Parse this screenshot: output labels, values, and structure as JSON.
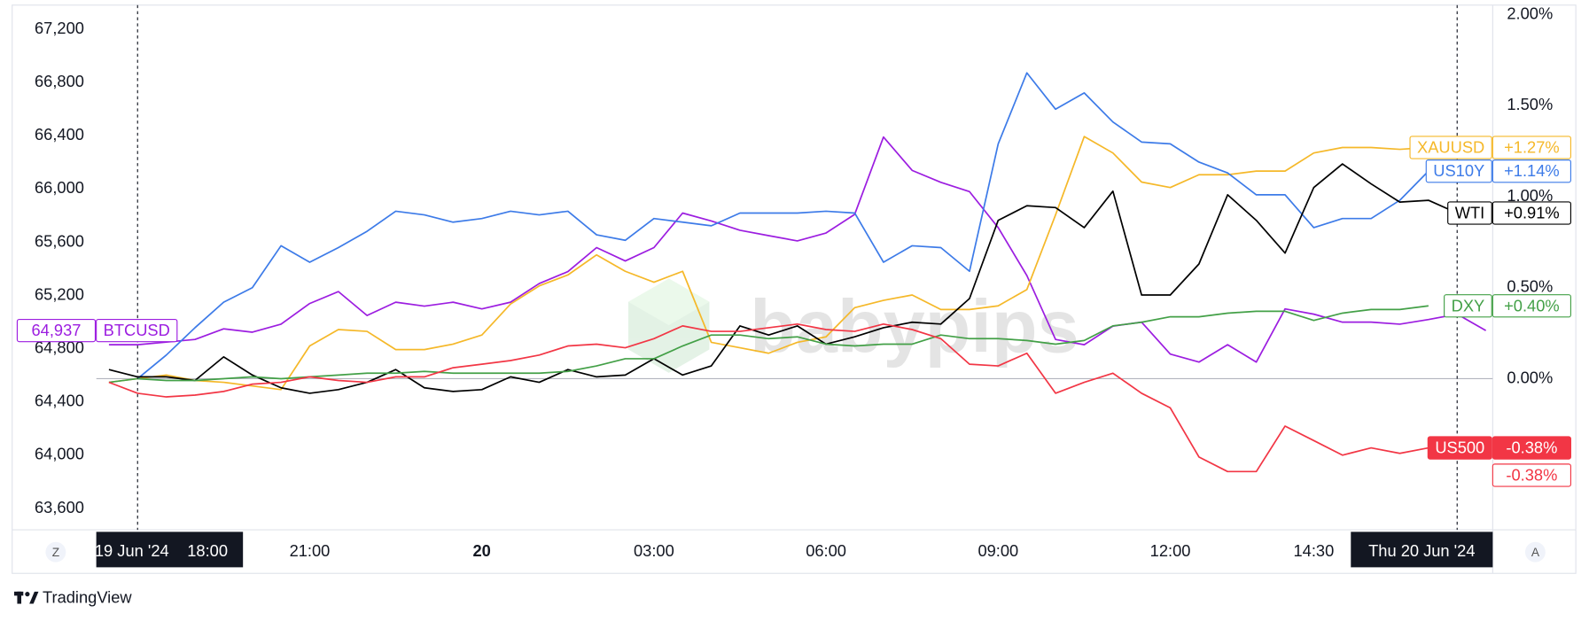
{
  "chart_data": {
    "type": "line",
    "x": [
      17.5,
      18,
      18.5,
      19,
      19.5,
      20,
      20.5,
      21,
      21.5,
      22,
      22.5,
      23,
      23.5,
      24,
      24.5,
      25,
      25.5,
      26,
      26.5,
      27,
      27.5,
      28,
      28.5,
      29,
      29.5,
      30,
      30.5,
      31,
      31.5,
      32,
      32.5,
      33,
      33.5,
      34,
      34.5,
      35,
      35.5,
      36,
      36.5,
      37,
      37.5,
      38,
      38.5,
      39,
      39.5,
      40,
      40.5,
      41,
      41.5
    ],
    "xlim": [
      17.28,
      41.62
    ],
    "xticks": [
      {
        "value": 21,
        "label": "21:00"
      },
      {
        "value": 24,
        "label": "20",
        "bold": true
      },
      {
        "value": 27,
        "label": "03:00"
      },
      {
        "value": 30,
        "label": "06:00"
      },
      {
        "value": 33,
        "label": "09:00"
      },
      {
        "value": 36,
        "label": "12:00"
      },
      {
        "value": 38.5,
        "label": "14:30"
      }
    ],
    "ylim": [
      63440,
      67420
    ],
    "yticks": [
      {
        "value": 63600,
        "label": "63,600"
      },
      {
        "value": 64000,
        "label": "64,000"
      },
      {
        "value": 64400,
        "label": "64,400"
      },
      {
        "value": 64800,
        "label": "64,800"
      },
      {
        "value": 65200,
        "label": "65,200"
      },
      {
        "value": 65600,
        "label": "65,600"
      },
      {
        "value": 66000,
        "label": "66,000"
      },
      {
        "value": 66400,
        "label": "66,400"
      },
      {
        "value": 66800,
        "label": "66,800"
      },
      {
        "value": 67200,
        "label": "67,200"
      }
    ],
    "y2lim": [
      -0.83,
      2.08
    ],
    "y2ticks": [
      {
        "value": 0,
        "label": "0.00%"
      },
      {
        "value": 0.5,
        "label": "0.50%"
      },
      {
        "value": 1,
        "label": "1.00%"
      },
      {
        "value": 1.5,
        "label": "1.50%"
      },
      {
        "value": 2,
        "label": "2.00%"
      }
    ],
    "zero_line": true,
    "markers": [
      {
        "x": 18,
        "label": "19 Jun '24",
        "time": "18:00"
      },
      {
        "x": 41,
        "label": "Thu 20 Jun '24"
      }
    ],
    "series": [
      {
        "name": "BTCUSD",
        "color": "#9c1de0",
        "axis": "y",
        "values": [
          64830,
          64830,
          64850,
          64870,
          64950,
          64925,
          64985,
          65140,
          65230,
          65050,
          65150,
          65120,
          65150,
          65100,
          65150,
          65290,
          65380,
          65560,
          65460,
          65560,
          65820,
          65760,
          65690,
          65650,
          65610,
          65670,
          65810,
          66390,
          66140,
          66050,
          65980,
          65710,
          65350,
          64870,
          64830,
          64970,
          65000,
          64760,
          64700,
          64830,
          64700,
          65100,
          65060,
          65000,
          65000,
          64985,
          65020,
          65060,
          64937
        ],
        "value_labels": {
          "48": "64,937"
        }
      },
      {
        "name": "XAUUSD",
        "color": "#f5b829",
        "axis": "y2",
        "values": [
          -0.02,
          0.0,
          0.02,
          -0.01,
          -0.02,
          -0.04,
          -0.06,
          0.18,
          0.27,
          0.26,
          0.16,
          0.16,
          0.19,
          0.24,
          0.41,
          0.51,
          0.57,
          0.68,
          0.59,
          0.53,
          0.59,
          0.2,
          0.17,
          0.14,
          0.2,
          0.23,
          0.39,
          0.43,
          0.46,
          0.38,
          0.38,
          0.4,
          0.49,
          0.9,
          1.33,
          1.24,
          1.08,
          1.05,
          1.12,
          1.12,
          1.14,
          1.14,
          1.24,
          1.27,
          1.27,
          1.26,
          1.27,
          null,
          null
        ],
        "value_labels": {
          "46": "+1.27%"
        }
      },
      {
        "name": "US10Y",
        "color": "#3d7be8",
        "axis": "y2",
        "values": [
          null,
          0.0,
          0.13,
          0.28,
          0.42,
          0.5,
          0.73,
          0.64,
          0.72,
          0.81,
          0.92,
          0.9,
          0.86,
          0.88,
          0.92,
          0.9,
          0.92,
          0.79,
          0.76,
          0.88,
          0.86,
          0.84,
          0.91,
          0.91,
          0.91,
          0.92,
          0.91,
          0.64,
          0.73,
          0.72,
          0.59,
          1.29,
          1.68,
          1.48,
          1.57,
          1.41,
          1.3,
          1.29,
          1.19,
          1.13,
          1.01,
          1.01,
          0.83,
          0.88,
          0.88,
          0.98,
          1.14,
          null,
          null
        ],
        "value_labels": {
          "46": "+1.14%"
        }
      },
      {
        "name": "WTI",
        "color": "#000000",
        "axis": "y2",
        "values": [
          0.05,
          0.01,
          0.01,
          -0.01,
          0.12,
          0.02,
          -0.05,
          -0.08,
          -0.06,
          -0.02,
          0.05,
          -0.05,
          -0.07,
          -0.06,
          0.01,
          -0.02,
          0.05,
          0.01,
          0.02,
          0.11,
          0.02,
          0.07,
          0.29,
          0.24,
          0.29,
          0.19,
          0.23,
          0.28,
          0.31,
          0.3,
          0.44,
          0.87,
          0.95,
          0.94,
          0.83,
          1.03,
          0.46,
          0.46,
          0.63,
          1.01,
          0.87,
          0.69,
          1.05,
          1.18,
          1.07,
          0.97,
          0.98,
          0.91,
          null
        ],
        "value_labels": {
          "47": "+0.91%"
        }
      },
      {
        "name": "DXY",
        "color": "#43a047",
        "axis": "y2",
        "values": [
          -0.02,
          0.0,
          -0.01,
          -0.01,
          0.0,
          0.01,
          0.0,
          0.01,
          0.02,
          0.03,
          0.03,
          0.04,
          0.03,
          0.03,
          0.03,
          0.03,
          0.04,
          0.07,
          0.11,
          0.11,
          0.18,
          0.24,
          0.24,
          0.22,
          0.23,
          0.19,
          0.18,
          0.19,
          0.19,
          0.24,
          0.22,
          0.22,
          0.21,
          0.19,
          0.21,
          0.29,
          0.31,
          0.34,
          0.34,
          0.36,
          0.37,
          0.37,
          0.32,
          0.36,
          0.38,
          0.38,
          0.4,
          null,
          null
        ],
        "value_labels": {
          "46": "+0.40%"
        }
      },
      {
        "name": "US500",
        "color": "#f23645",
        "axis": "y2",
        "filled_label": true,
        "values": [
          -0.02,
          -0.08,
          -0.1,
          -0.09,
          -0.07,
          -0.03,
          -0.02,
          0.01,
          -0.01,
          -0.02,
          0.01,
          0.01,
          0.06,
          0.08,
          0.1,
          0.13,
          0.18,
          0.19,
          0.17,
          0.22,
          0.29,
          0.26,
          0.26,
          0.28,
          0.3,
          0.27,
          0.26,
          0.3,
          0.27,
          0.22,
          0.08,
          0.07,
          0.14,
          -0.08,
          -0.02,
          0.03,
          -0.08,
          -0.16,
          -0.43,
          -0.51,
          -0.51,
          -0.26,
          -0.34,
          -0.42,
          -0.38,
          -0.41,
          -0.38,
          null,
          null
        ],
        "value_labels": {
          "46": "-0.38%"
        },
        "extra_label": "-0.38%"
      }
    ]
  },
  "watermark": "babypips",
  "footer": "TradingView",
  "buttons": [
    "Z",
    "A"
  ]
}
